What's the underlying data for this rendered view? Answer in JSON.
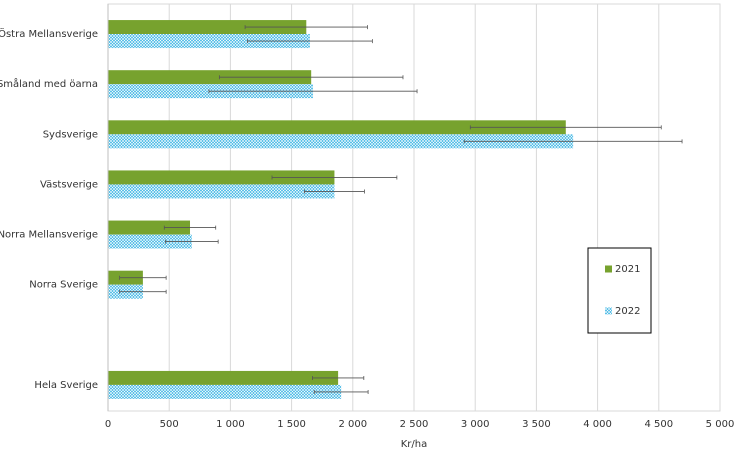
{
  "chart_data": {
    "type": "bar",
    "orientation": "horizontal",
    "categories": [
      "Östra Mellansverige",
      "Småland med öarna",
      "Sydsverige",
      "Västsverige",
      "Norra Mellansverige",
      "Norra Sverige",
      null,
      "Hela Sverige"
    ],
    "series": [
      {
        "name": "2021",
        "color": "#77a22e",
        "pattern": "solid",
        "values": [
          1620,
          1660,
          3740,
          1850,
          670,
          285,
          null,
          1880
        ],
        "errors": [
          500,
          750,
          780,
          510,
          210,
          190,
          null,
          210
        ]
      },
      {
        "name": "2022",
        "color": "#3fb6e4",
        "pattern": "crosshatch",
        "values": [
          1650,
          1675,
          3800,
          1850,
          685,
          285,
          null,
          1905
        ],
        "errors": [
          510,
          850,
          890,
          245,
          215,
          190,
          null,
          220
        ]
      }
    ],
    "xlabel": "Kr/ha",
    "xlim": [
      0,
      5000
    ],
    "xticks": [
      0,
      500,
      {
        "value": 1000,
        "label": "1 000"
      },
      {
        "value": 1500,
        "label": "1 500"
      },
      {
        "value": 2000,
        "label": "2 000"
      },
      {
        "value": 2500,
        "label": "2 500"
      },
      {
        "value": 3000,
        "label": "3 000"
      },
      {
        "value": 3500,
        "label": "3 500"
      },
      {
        "value": 4000,
        "label": "4 000"
      },
      {
        "value": 4500,
        "label": "4 500"
      },
      {
        "value": 5000,
        "label": "5 000"
      }
    ],
    "grid": true,
    "legend_position": "right"
  }
}
